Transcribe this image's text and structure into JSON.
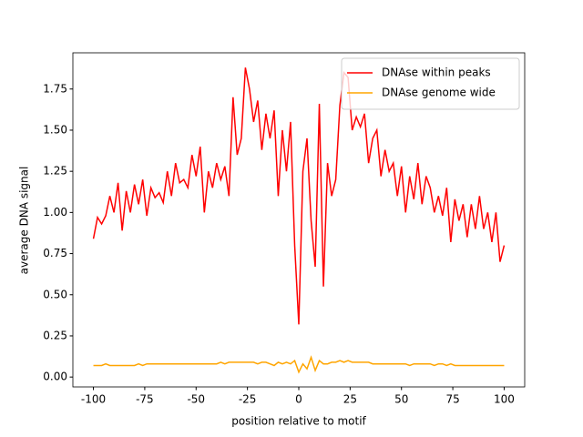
{
  "chart_data": {
    "type": "line",
    "xlabel": "position relative to motif",
    "ylabel": "average DNA signal",
    "x": [
      -100,
      -98,
      -96,
      -94,
      -92,
      -90,
      -88,
      -86,
      -84,
      -82,
      -80,
      -78,
      -76,
      -74,
      -72,
      -70,
      -68,
      -66,
      -64,
      -62,
      -60,
      -58,
      -56,
      -54,
      -52,
      -50,
      -48,
      -46,
      -44,
      -42,
      -40,
      -38,
      -36,
      -34,
      -32,
      -30,
      -28,
      -26,
      -24,
      -22,
      -20,
      -18,
      -16,
      -14,
      -12,
      -10,
      -8,
      -6,
      -4,
      -2,
      0,
      2,
      4,
      6,
      8,
      10,
      12,
      14,
      16,
      18,
      20,
      22,
      24,
      26,
      28,
      30,
      32,
      34,
      36,
      38,
      40,
      42,
      44,
      46,
      48,
      50,
      52,
      54,
      56,
      58,
      60,
      62,
      64,
      66,
      68,
      70,
      72,
      74,
      76,
      78,
      80,
      82,
      84,
      86,
      88,
      90,
      92,
      94,
      96,
      98,
      100
    ],
    "series": [
      {
        "name": "DNAse within peaks",
        "color": "#ff0000",
        "values": [
          0.84,
          0.97,
          0.93,
          0.98,
          1.1,
          1.0,
          1.18,
          0.89,
          1.13,
          1.0,
          1.17,
          1.05,
          1.2,
          0.98,
          1.15,
          1.09,
          1.12,
          1.06,
          1.25,
          1.1,
          1.3,
          1.18,
          1.2,
          1.15,
          1.35,
          1.22,
          1.4,
          1.0,
          1.25,
          1.15,
          1.3,
          1.2,
          1.28,
          1.1,
          1.7,
          1.35,
          1.45,
          1.88,
          1.75,
          1.55,
          1.68,
          1.38,
          1.6,
          1.45,
          1.62,
          1.1,
          1.5,
          1.25,
          1.55,
          0.8,
          0.32,
          1.25,
          1.45,
          0.95,
          0.67,
          1.66,
          0.55,
          1.3,
          1.1,
          1.2,
          1.65,
          1.85,
          1.82,
          1.5,
          1.58,
          1.52,
          1.6,
          1.3,
          1.45,
          1.5,
          1.22,
          1.38,
          1.25,
          1.3,
          1.1,
          1.28,
          1.0,
          1.22,
          1.08,
          1.3,
          1.05,
          1.22,
          1.15,
          1.0,
          1.1,
          0.98,
          1.15,
          0.82,
          1.08,
          0.95,
          1.05,
          0.85,
          1.05,
          0.9,
          1.1,
          0.9,
          1.0,
          0.82,
          1.0,
          0.7,
          0.8
        ]
      },
      {
        "name": "DNAse genome wide",
        "color": "#ffa500",
        "values": [
          0.07,
          0.07,
          0.07,
          0.08,
          0.07,
          0.07,
          0.07,
          0.07,
          0.07,
          0.07,
          0.07,
          0.08,
          0.07,
          0.08,
          0.08,
          0.08,
          0.08,
          0.08,
          0.08,
          0.08,
          0.08,
          0.08,
          0.08,
          0.08,
          0.08,
          0.08,
          0.08,
          0.08,
          0.08,
          0.08,
          0.08,
          0.09,
          0.08,
          0.09,
          0.09,
          0.09,
          0.09,
          0.09,
          0.09,
          0.09,
          0.08,
          0.09,
          0.09,
          0.08,
          0.07,
          0.09,
          0.08,
          0.09,
          0.08,
          0.1,
          0.03,
          0.08,
          0.05,
          0.12,
          0.04,
          0.1,
          0.08,
          0.08,
          0.09,
          0.09,
          0.1,
          0.09,
          0.1,
          0.09,
          0.09,
          0.09,
          0.09,
          0.09,
          0.08,
          0.08,
          0.08,
          0.08,
          0.08,
          0.08,
          0.08,
          0.08,
          0.08,
          0.07,
          0.08,
          0.08,
          0.08,
          0.08,
          0.08,
          0.07,
          0.08,
          0.08,
          0.07,
          0.08,
          0.07,
          0.07,
          0.07,
          0.07,
          0.07,
          0.07,
          0.07,
          0.07,
          0.07,
          0.07,
          0.07,
          0.07,
          0.07
        ]
      }
    ],
    "xlim": [
      -110,
      110
    ],
    "xticks": [
      -100,
      -75,
      -50,
      -25,
      0,
      25,
      50,
      75,
      100
    ],
    "ylim": [
      -0.06,
      1.97
    ],
    "yticks": [
      {
        "value": 0,
        "label": "0.00"
      },
      {
        "value": 0.25,
        "label": "0.25"
      },
      {
        "value": 0.5,
        "label": "0.50"
      },
      {
        "value": 0.75,
        "label": "0.75"
      },
      {
        "value": 1.0,
        "label": "1.00"
      },
      {
        "value": 1.25,
        "label": "1.25"
      },
      {
        "value": 1.5,
        "label": "1.50"
      },
      {
        "value": 1.75,
        "label": "1.75"
      }
    ],
    "legend": "upper right"
  }
}
